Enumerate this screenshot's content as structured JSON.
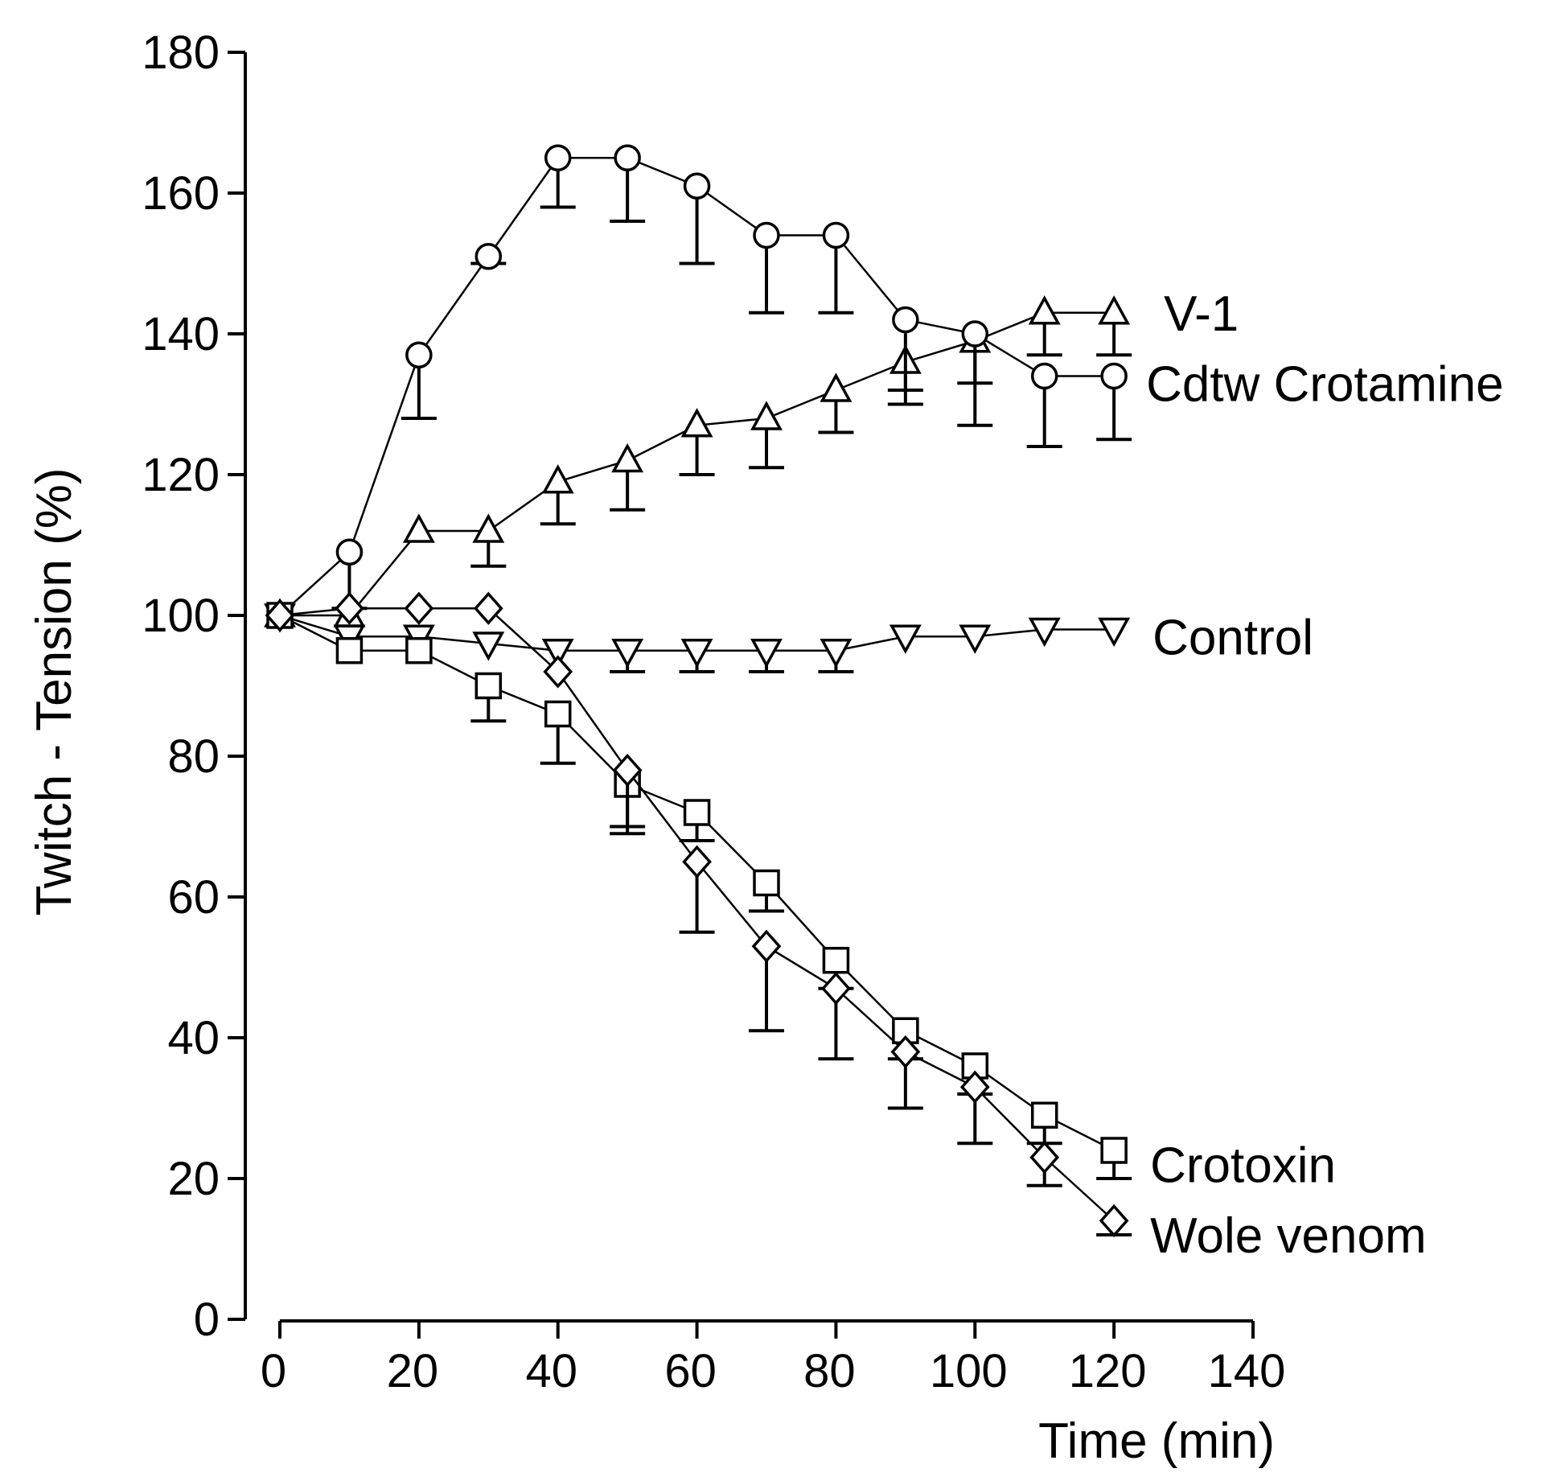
{
  "chart_data": {
    "type": "line",
    "title": "",
    "xlabel": "Time (min)",
    "ylabel": "Twitch - Tension (%)",
    "xlim": [
      0,
      140
    ],
    "ylim": [
      0,
      180
    ],
    "x_ticks": [
      "0",
      "20",
      "40",
      "60",
      "80",
      "100",
      "120",
      "140"
    ],
    "y_ticks": [
      "0",
      "20",
      "40",
      "60",
      "80",
      "100",
      "120",
      "140",
      "160",
      "180"
    ],
    "grid": false,
    "legend": "inline labels at right end of each series",
    "x": [
      0,
      10,
      20,
      30,
      40,
      50,
      60,
      70,
      80,
      90,
      100,
      110,
      120
    ],
    "series": [
      {
        "name": "V-1",
        "marker": "triangle-up",
        "values": [
          100,
          100,
          112,
          112,
          119,
          122,
          127,
          128,
          132,
          136,
          139,
          143,
          143
        ],
        "errors": [
          0,
          0,
          0,
          5,
          6,
          7,
          7,
          7,
          6,
          6,
          6,
          6,
          6
        ]
      },
      {
        "name": "Cdtw Crotamine",
        "marker": "circle",
        "values": [
          100,
          109,
          137,
          151,
          165,
          165,
          161,
          154,
          154,
          142,
          140,
          134,
          134
        ],
        "errors": [
          0,
          8,
          9,
          1,
          7,
          9,
          11,
          11,
          11,
          10,
          13,
          10,
          9
        ]
      },
      {
        "name": "Control",
        "marker": "triangle-down",
        "values": [
          100,
          97,
          97,
          96,
          95,
          95,
          95,
          95,
          95,
          97,
          97,
          98,
          98
        ],
        "errors": [
          0,
          0,
          0,
          0,
          0,
          3,
          3,
          3,
          3,
          0,
          0,
          0,
          0
        ]
      },
      {
        "name": "Crotoxin",
        "marker": "square",
        "values": [
          100,
          95,
          95,
          90,
          86,
          76,
          72,
          62,
          51,
          41,
          36,
          29,
          24
        ],
        "errors": [
          0,
          0,
          0,
          5,
          7,
          7,
          4,
          4,
          4,
          4,
          4,
          4,
          4
        ]
      },
      {
        "name": "Wole venom",
        "marker": "diamond",
        "values": [
          100,
          101,
          101,
          101,
          92,
          78,
          65,
          53,
          47,
          38,
          33,
          23,
          14
        ],
        "errors": [
          0,
          0,
          0,
          0,
          0,
          8,
          10,
          12,
          10,
          8,
          8,
          4,
          2
        ]
      }
    ]
  }
}
